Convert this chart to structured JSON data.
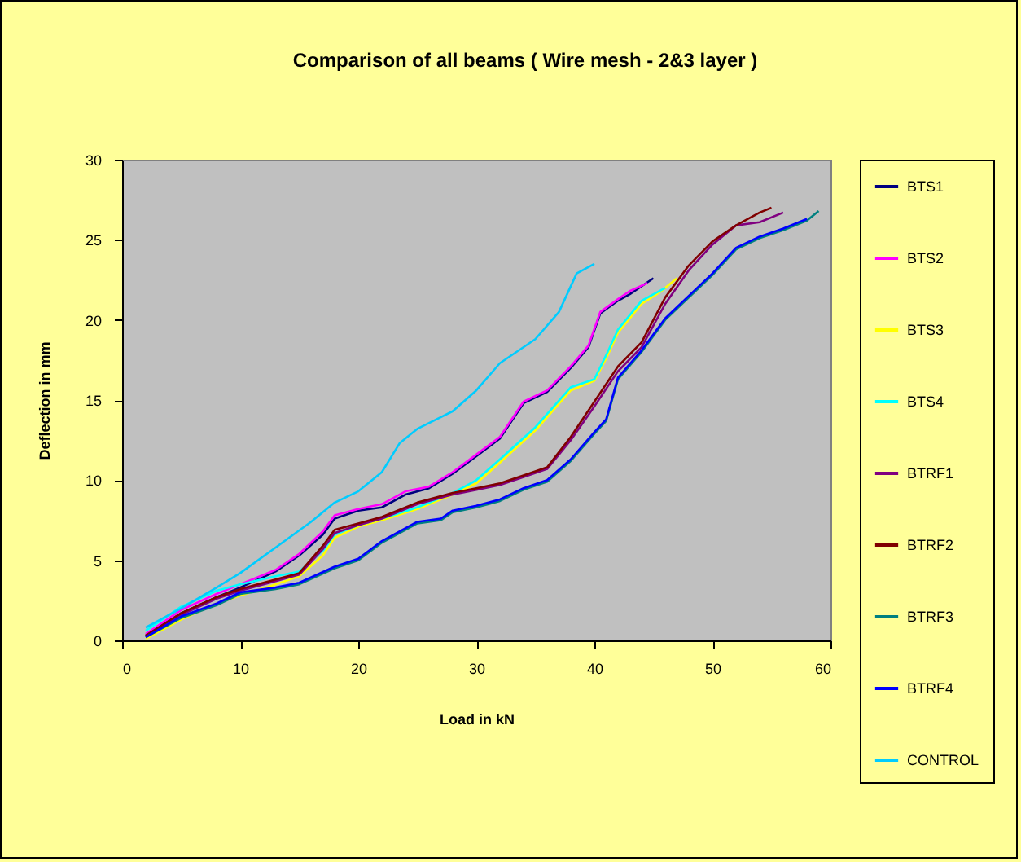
{
  "chart_data": {
    "type": "line",
    "title": "Comparison of all beams ( Wire mesh - 2&3 layer )",
    "xlabel": "Load in kN",
    "ylabel": "Deflection in mm",
    "xlim": [
      0,
      60
    ],
    "xticks": [
      0,
      10,
      20,
      30,
      40,
      50,
      60
    ],
    "ylim": [
      0,
      30
    ],
    "yticks": [
      0,
      5,
      10,
      15,
      20,
      25,
      30
    ],
    "grid": false,
    "legend": "right",
    "marker": "none",
    "line_style": "solid",
    "series": [
      {
        "name": "BTS1",
        "color": "#000080",
        "x": [
          2,
          5,
          8,
          10,
          13,
          15,
          17,
          18,
          20,
          22,
          24,
          26,
          28,
          30,
          32,
          34,
          36,
          38,
          39.5,
          40.5,
          42,
          43,
          45
        ],
        "values": [
          0.3,
          1.7,
          2.7,
          3.3,
          4.3,
          5.3,
          6.6,
          7.6,
          8.1,
          8.3,
          9.1,
          9.5,
          10.4,
          11.5,
          12.6,
          14.8,
          15.5,
          17.0,
          18.3,
          20.4,
          21.2,
          21.6,
          22.6
        ]
      },
      {
        "name": "BTS2",
        "color": "#ff00ff",
        "x": [
          2,
          5,
          8,
          10,
          13,
          15,
          17,
          18,
          20,
          22,
          24,
          26,
          28,
          30,
          32,
          34,
          36,
          38,
          39.5,
          40.5,
          42,
          43,
          44.5
        ],
        "values": [
          0.4,
          1.9,
          2.9,
          3.5,
          4.4,
          5.4,
          6.8,
          7.8,
          8.2,
          8.5,
          9.3,
          9.6,
          10.5,
          11.6,
          12.7,
          14.9,
          15.6,
          17.1,
          18.4,
          20.5,
          21.3,
          21.8,
          22.3
        ]
      },
      {
        "name": "BTS3",
        "color": "#ffff00",
        "x": [
          2,
          5,
          8,
          10,
          13,
          15,
          17,
          18,
          20,
          22,
          25,
          28,
          30,
          32,
          35,
          38,
          40,
          41,
          42,
          44,
          45.5,
          47
        ],
        "values": [
          0.1,
          1.3,
          2.3,
          2.8,
          3.5,
          4.0,
          5.3,
          6.4,
          7.1,
          7.5,
          8.2,
          9.1,
          9.8,
          11.1,
          13.1,
          15.6,
          16.2,
          17.6,
          19.2,
          21.0,
          21.7,
          22.6
        ]
      },
      {
        "name": "BTS4",
        "color": "#00ffff",
        "x": [
          2,
          5,
          8,
          10,
          13,
          15,
          17,
          18,
          20,
          22,
          25,
          28,
          30,
          32,
          35,
          38,
          40,
          41,
          42,
          44,
          46
        ],
        "values": [
          0.6,
          2.1,
          3.1,
          3.5,
          4.0,
          4.3,
          5.6,
          6.6,
          7.2,
          7.6,
          8.3,
          9.2,
          10.0,
          11.3,
          13.3,
          15.8,
          16.3,
          17.8,
          19.4,
          21.2,
          22.0
        ]
      },
      {
        "name": "BTRF1",
        "color": "#800080",
        "x": [
          2,
          5,
          8,
          10,
          13,
          15,
          17,
          18,
          20,
          22,
          25,
          28,
          30,
          32,
          34,
          36,
          38,
          40,
          42,
          44,
          46,
          48,
          50,
          52,
          54,
          56
        ],
        "values": [
          0.3,
          1.6,
          2.6,
          3.1,
          3.7,
          4.1,
          5.7,
          6.7,
          7.2,
          7.6,
          8.5,
          9.1,
          9.4,
          9.7,
          10.2,
          10.7,
          12.5,
          14.6,
          16.8,
          18.3,
          21.0,
          23.1,
          24.7,
          25.9,
          26.1,
          26.7
        ]
      },
      {
        "name": "BTRF2",
        "color": "#800000",
        "x": [
          2,
          5,
          8,
          10,
          13,
          15,
          17,
          18,
          20,
          22,
          25,
          28,
          30,
          32,
          34,
          36,
          38,
          40,
          42,
          44,
          46,
          48,
          50,
          52,
          54,
          55
        ],
        "values": [
          0.3,
          1.7,
          2.7,
          3.2,
          3.8,
          4.2,
          5.9,
          6.9,
          7.3,
          7.7,
          8.6,
          9.2,
          9.5,
          9.8,
          10.3,
          10.8,
          12.7,
          14.9,
          17.1,
          18.6,
          21.4,
          23.4,
          24.9,
          25.9,
          26.7,
          27.0
        ]
      },
      {
        "name": "BTRF3",
        "color": "#008080",
        "x": [
          2,
          5,
          8,
          10,
          13,
          15,
          18,
          20,
          22,
          25,
          27,
          28,
          30,
          32,
          34,
          36,
          38,
          40,
          41,
          42,
          44,
          46,
          48,
          50,
          52,
          54,
          56,
          58,
          59
        ],
        "values": [
          0.2,
          1.4,
          2.2,
          2.9,
          3.2,
          3.5,
          4.5,
          5.0,
          6.1,
          7.3,
          7.5,
          8.0,
          8.3,
          8.7,
          9.4,
          9.9,
          11.2,
          12.9,
          13.7,
          16.3,
          18.0,
          20.0,
          21.4,
          22.8,
          24.4,
          25.1,
          25.6,
          26.2,
          26.8
        ]
      },
      {
        "name": "BTRF4",
        "color": "#0000ff",
        "x": [
          2,
          5,
          8,
          10,
          13,
          15,
          18,
          20,
          22,
          25,
          27,
          28,
          30,
          32,
          34,
          36,
          38,
          40,
          41,
          42,
          44,
          46,
          48,
          50,
          52,
          54,
          56,
          58
        ],
        "values": [
          0.2,
          1.5,
          2.3,
          3.0,
          3.3,
          3.6,
          4.6,
          5.1,
          6.2,
          7.4,
          7.6,
          8.1,
          8.4,
          8.8,
          9.5,
          10.0,
          11.3,
          13.0,
          13.8,
          16.4,
          18.1,
          20.1,
          21.5,
          22.9,
          24.5,
          25.2,
          25.7,
          26.3
        ]
      },
      {
        "name": "CONTROL",
        "color": "#00ccff",
        "x": [
          2,
          5,
          8,
          10,
          13,
          16,
          18,
          20,
          22,
          23.5,
          25,
          28,
          30,
          32,
          35,
          37,
          38.5,
          40
        ],
        "values": [
          0.8,
          2.0,
          3.3,
          4.2,
          5.8,
          7.4,
          8.6,
          9.3,
          10.5,
          12.3,
          13.2,
          14.3,
          15.6,
          17.3,
          18.8,
          20.5,
          22.9,
          23.5
        ]
      }
    ]
  }
}
